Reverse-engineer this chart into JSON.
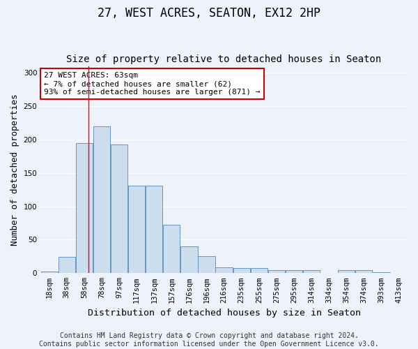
{
  "title": "27, WEST ACRES, SEATON, EX12 2HP",
  "subtitle": "Size of property relative to detached houses in Seaton",
  "xlabel": "Distribution of detached houses by size in Seaton",
  "ylabel": "Number of detached properties",
  "bin_labels": [
    "18sqm",
    "38sqm",
    "58sqm",
    "78sqm",
    "97sqm",
    "117sqm",
    "137sqm",
    "157sqm",
    "176sqm",
    "196sqm",
    "216sqm",
    "235sqm",
    "255sqm",
    "275sqm",
    "295sqm",
    "314sqm",
    "334sqm",
    "354sqm",
    "374sqm",
    "393sqm",
    "413sqm"
  ],
  "bar_values": [
    2,
    24,
    195,
    220,
    193,
    131,
    131,
    72,
    40,
    25,
    9,
    8,
    8,
    5,
    5,
    4,
    0,
    4,
    4,
    1,
    0
  ],
  "bar_color": "#ccdded",
  "bar_edge_color": "#5588bb",
  "red_line_x": 2.25,
  "annotation_title": "27 WEST ACRES: 63sqm",
  "annotation_line1": "← 7% of detached houses are smaller (62)",
  "annotation_line2": "93% of semi-detached houses are larger (871) →",
  "annotation_box_color": "#ffffff",
  "annotation_box_edge": "#cc0000",
  "ylim": [
    0,
    310
  ],
  "yticks": [
    0,
    50,
    100,
    150,
    200,
    250,
    300
  ],
  "footer1": "Contains HM Land Registry data © Crown copyright and database right 2024.",
  "footer2": "Contains public sector information licensed under the Open Government Licence v3.0.",
  "bg_color": "#eef2fa",
  "grid_color": "#ffffff",
  "title_fontsize": 12,
  "subtitle_fontsize": 10,
  "axis_label_fontsize": 9,
  "tick_fontsize": 7.5,
  "footer_fontsize": 7,
  "annotation_fontsize": 8
}
